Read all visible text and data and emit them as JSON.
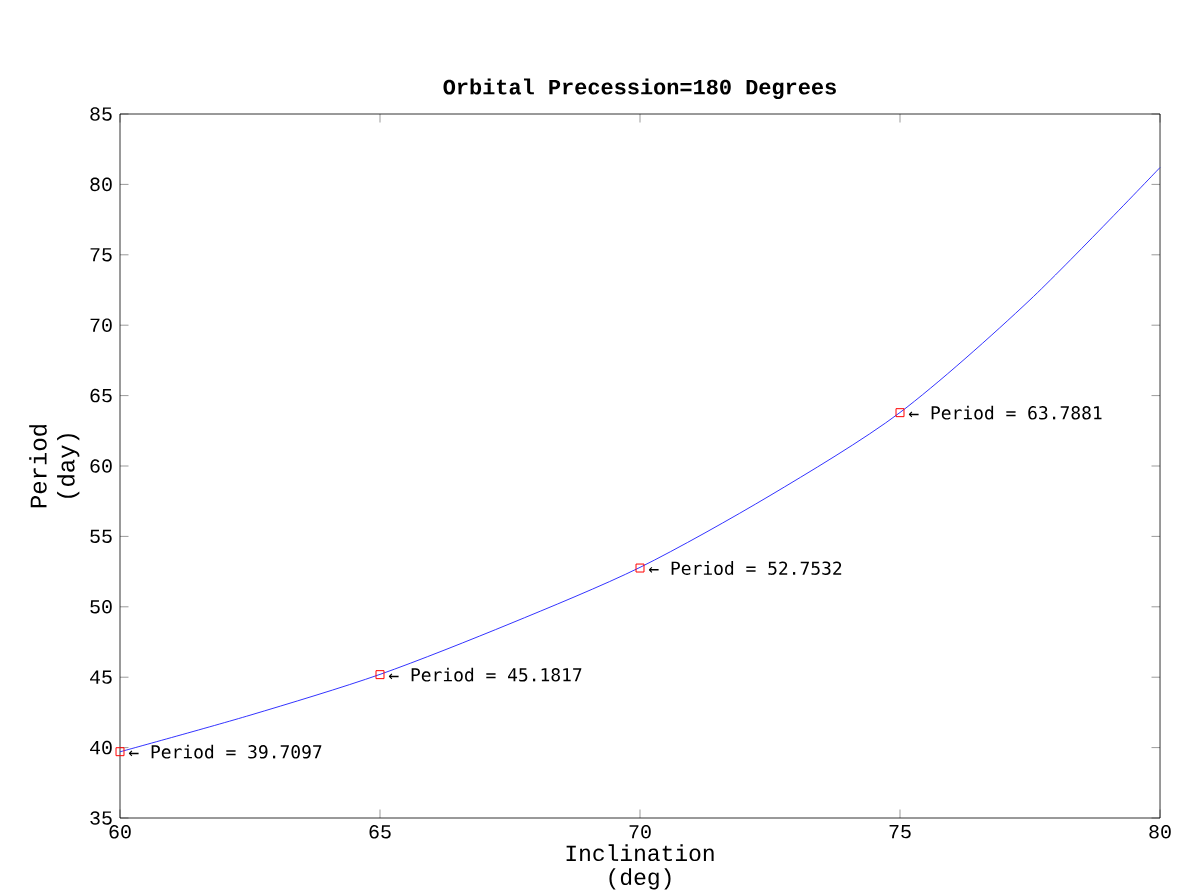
{
  "chart_data": {
    "type": "line",
    "title": "Orbital Precession=180 Degrees",
    "xlabel": "Inclination (deg)",
    "ylabel": "Period (day)",
    "xlim": [
      60,
      80
    ],
    "ylim": [
      35,
      85
    ],
    "xticks": [
      60,
      65,
      70,
      75,
      80
    ],
    "yticks": [
      35,
      40,
      45,
      50,
      55,
      60,
      65,
      70,
      75,
      80,
      85
    ],
    "grid": false,
    "series": [
      {
        "type": "line",
        "color": "#0000ff",
        "marker": "none",
        "x": [
          60,
          62.5,
          65,
          67.5,
          70,
          72.5,
          75,
          77.5,
          80
        ],
        "values": [
          39.7,
          42.3,
          45.2,
          48.8,
          52.8,
          57.9,
          63.8,
          71.8,
          81.2
        ]
      },
      {
        "type": "scatter",
        "color": "#ff0000",
        "marker": "square",
        "x": [
          60,
          65,
          70,
          75
        ],
        "values": [
          39.7097,
          45.1817,
          52.7532,
          63.7881
        ]
      }
    ],
    "annotations": [
      {
        "text": "← Period = 39.7097",
        "x": 60,
        "y": 39.7097
      },
      {
        "text": "← Period = 45.1817",
        "x": 65,
        "y": 45.1817
      },
      {
        "text": "← Period = 52.7532",
        "x": 70,
        "y": 52.7532
      },
      {
        "text": "← Period = 63.7881",
        "x": 75,
        "y": 63.7881
      }
    ]
  }
}
